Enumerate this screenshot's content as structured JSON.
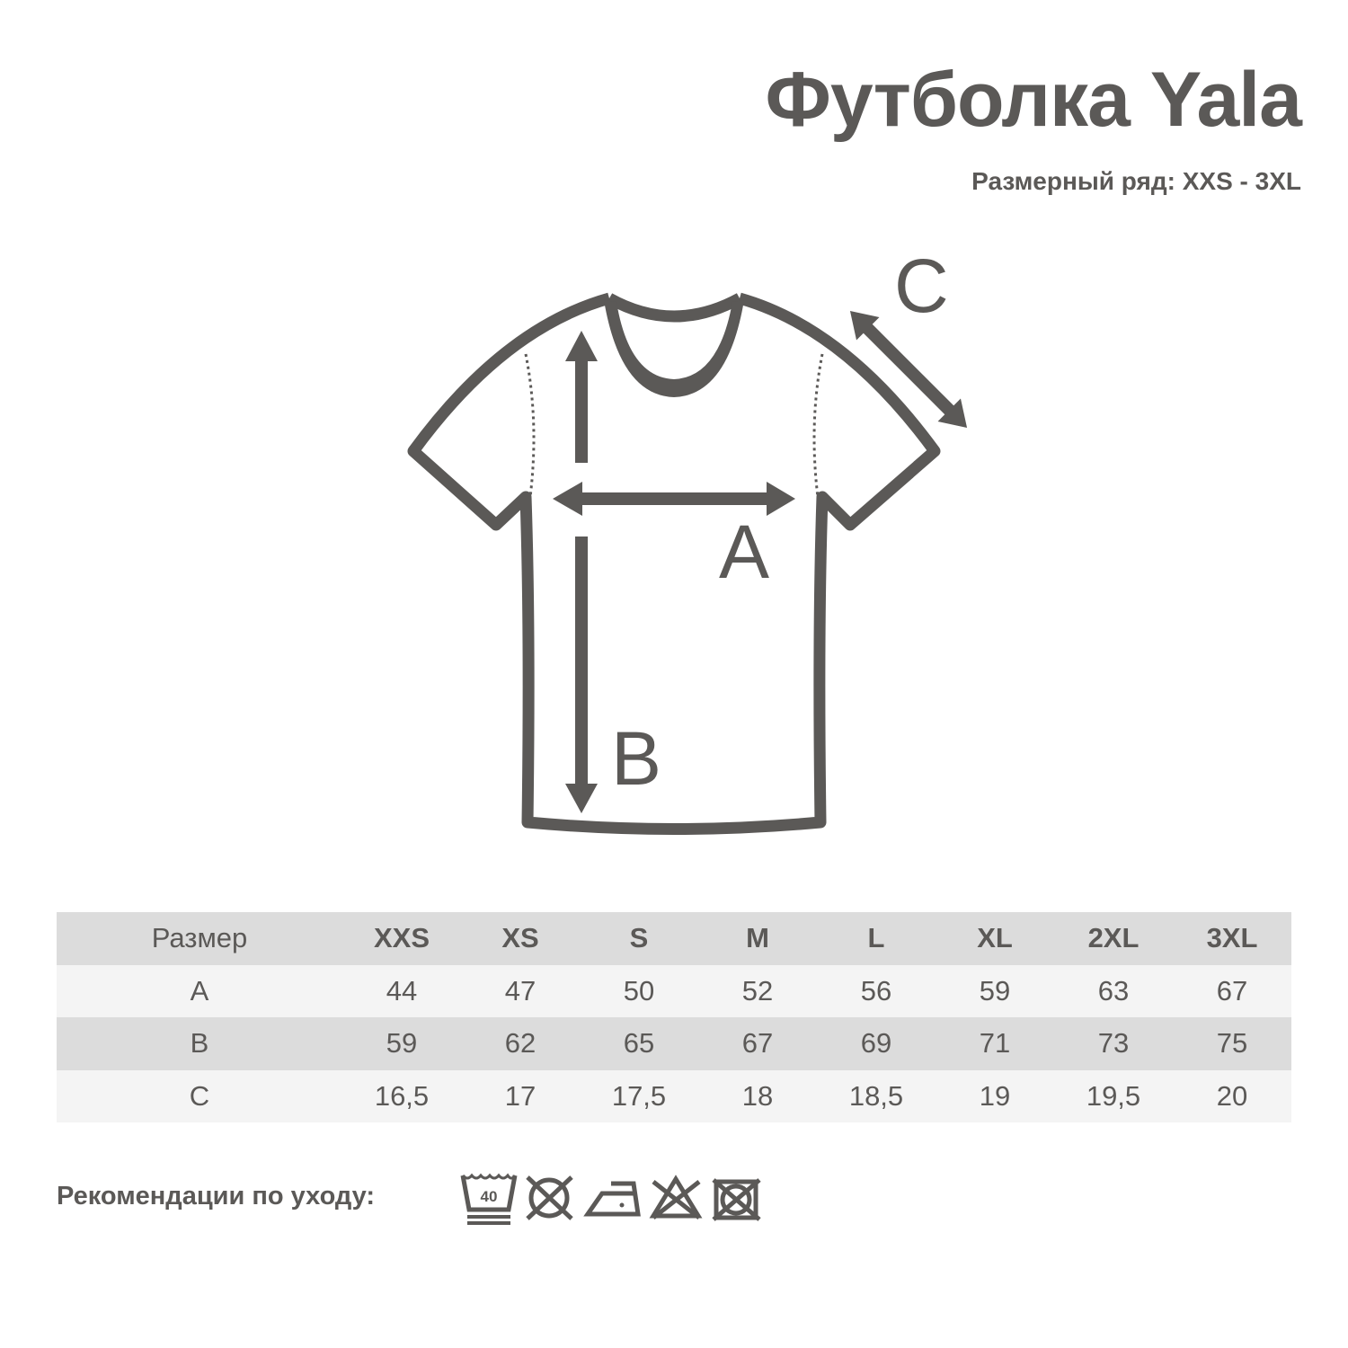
{
  "title": "Футболка Yala",
  "subtitle": "Размерный ряд: XXS - 3XL",
  "diagram": {
    "labels": {
      "a": "A",
      "b": "B",
      "c": "C"
    }
  },
  "table": {
    "header": [
      "Размер",
      "XXS",
      "XS",
      "S",
      "M",
      "L",
      "XL",
      "2XL",
      "3XL"
    ],
    "rows": [
      [
        "A",
        "44",
        "47",
        "50",
        "52",
        "56",
        "59",
        "63",
        "67"
      ],
      [
        "B",
        "59",
        "62",
        "65",
        "67",
        "69",
        "71",
        "73",
        "75"
      ],
      [
        "C",
        "16,5",
        "17",
        "17,5",
        "18",
        "18,5",
        "19",
        "19,5",
        "20"
      ]
    ]
  },
  "care": {
    "label": "Рекомендации по уходу:",
    "wash_temp": "40",
    "icons": [
      "wash-40-gentle-icon",
      "no-tumble-dry-icon",
      "iron-low-icon",
      "no-bleach-icon",
      "no-dry-clean-icon"
    ]
  },
  "colors": {
    "ink": "#5b5957",
    "row_dark": "#dcdcdc",
    "row_light": "#f4f4f4"
  }
}
